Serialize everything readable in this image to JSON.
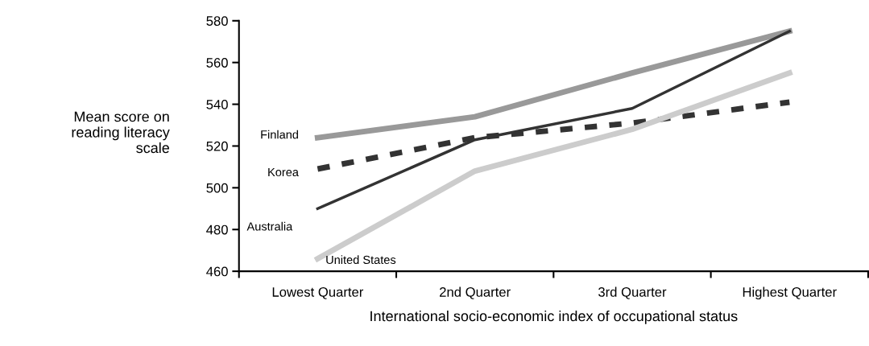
{
  "chart_data": {
    "type": "line",
    "xlabel": "International socio-economic index of occupational status",
    "ylabel": "Mean score on\nreading literacy\nscale",
    "categories": [
      "Lowest Quarter",
      "2nd Quarter",
      "3rd Quarter",
      "Highest Quarter"
    ],
    "series": [
      {
        "name": "Finland",
        "color": "#999999",
        "line_style": "solid",
        "values": [
          524,
          534,
          555,
          575
        ]
      },
      {
        "name": "Korea",
        "color": "#333333",
        "line_style": "dashed",
        "values": [
          509,
          524,
          531,
          541
        ]
      },
      {
        "name": "Australia",
        "color": "#333333",
        "line_style": "solid",
        "values": [
          490,
          523,
          538,
          575
        ]
      },
      {
        "name": "United States",
        "color": "#cccccc",
        "line_style": "solid",
        "values": [
          466,
          508,
          528,
          555
        ]
      }
    ],
    "ylim": [
      460,
      580
    ],
    "yticks": [
      460,
      480,
      500,
      520,
      540,
      560,
      580
    ],
    "grid": false,
    "legend": false,
    "marker": "none"
  }
}
